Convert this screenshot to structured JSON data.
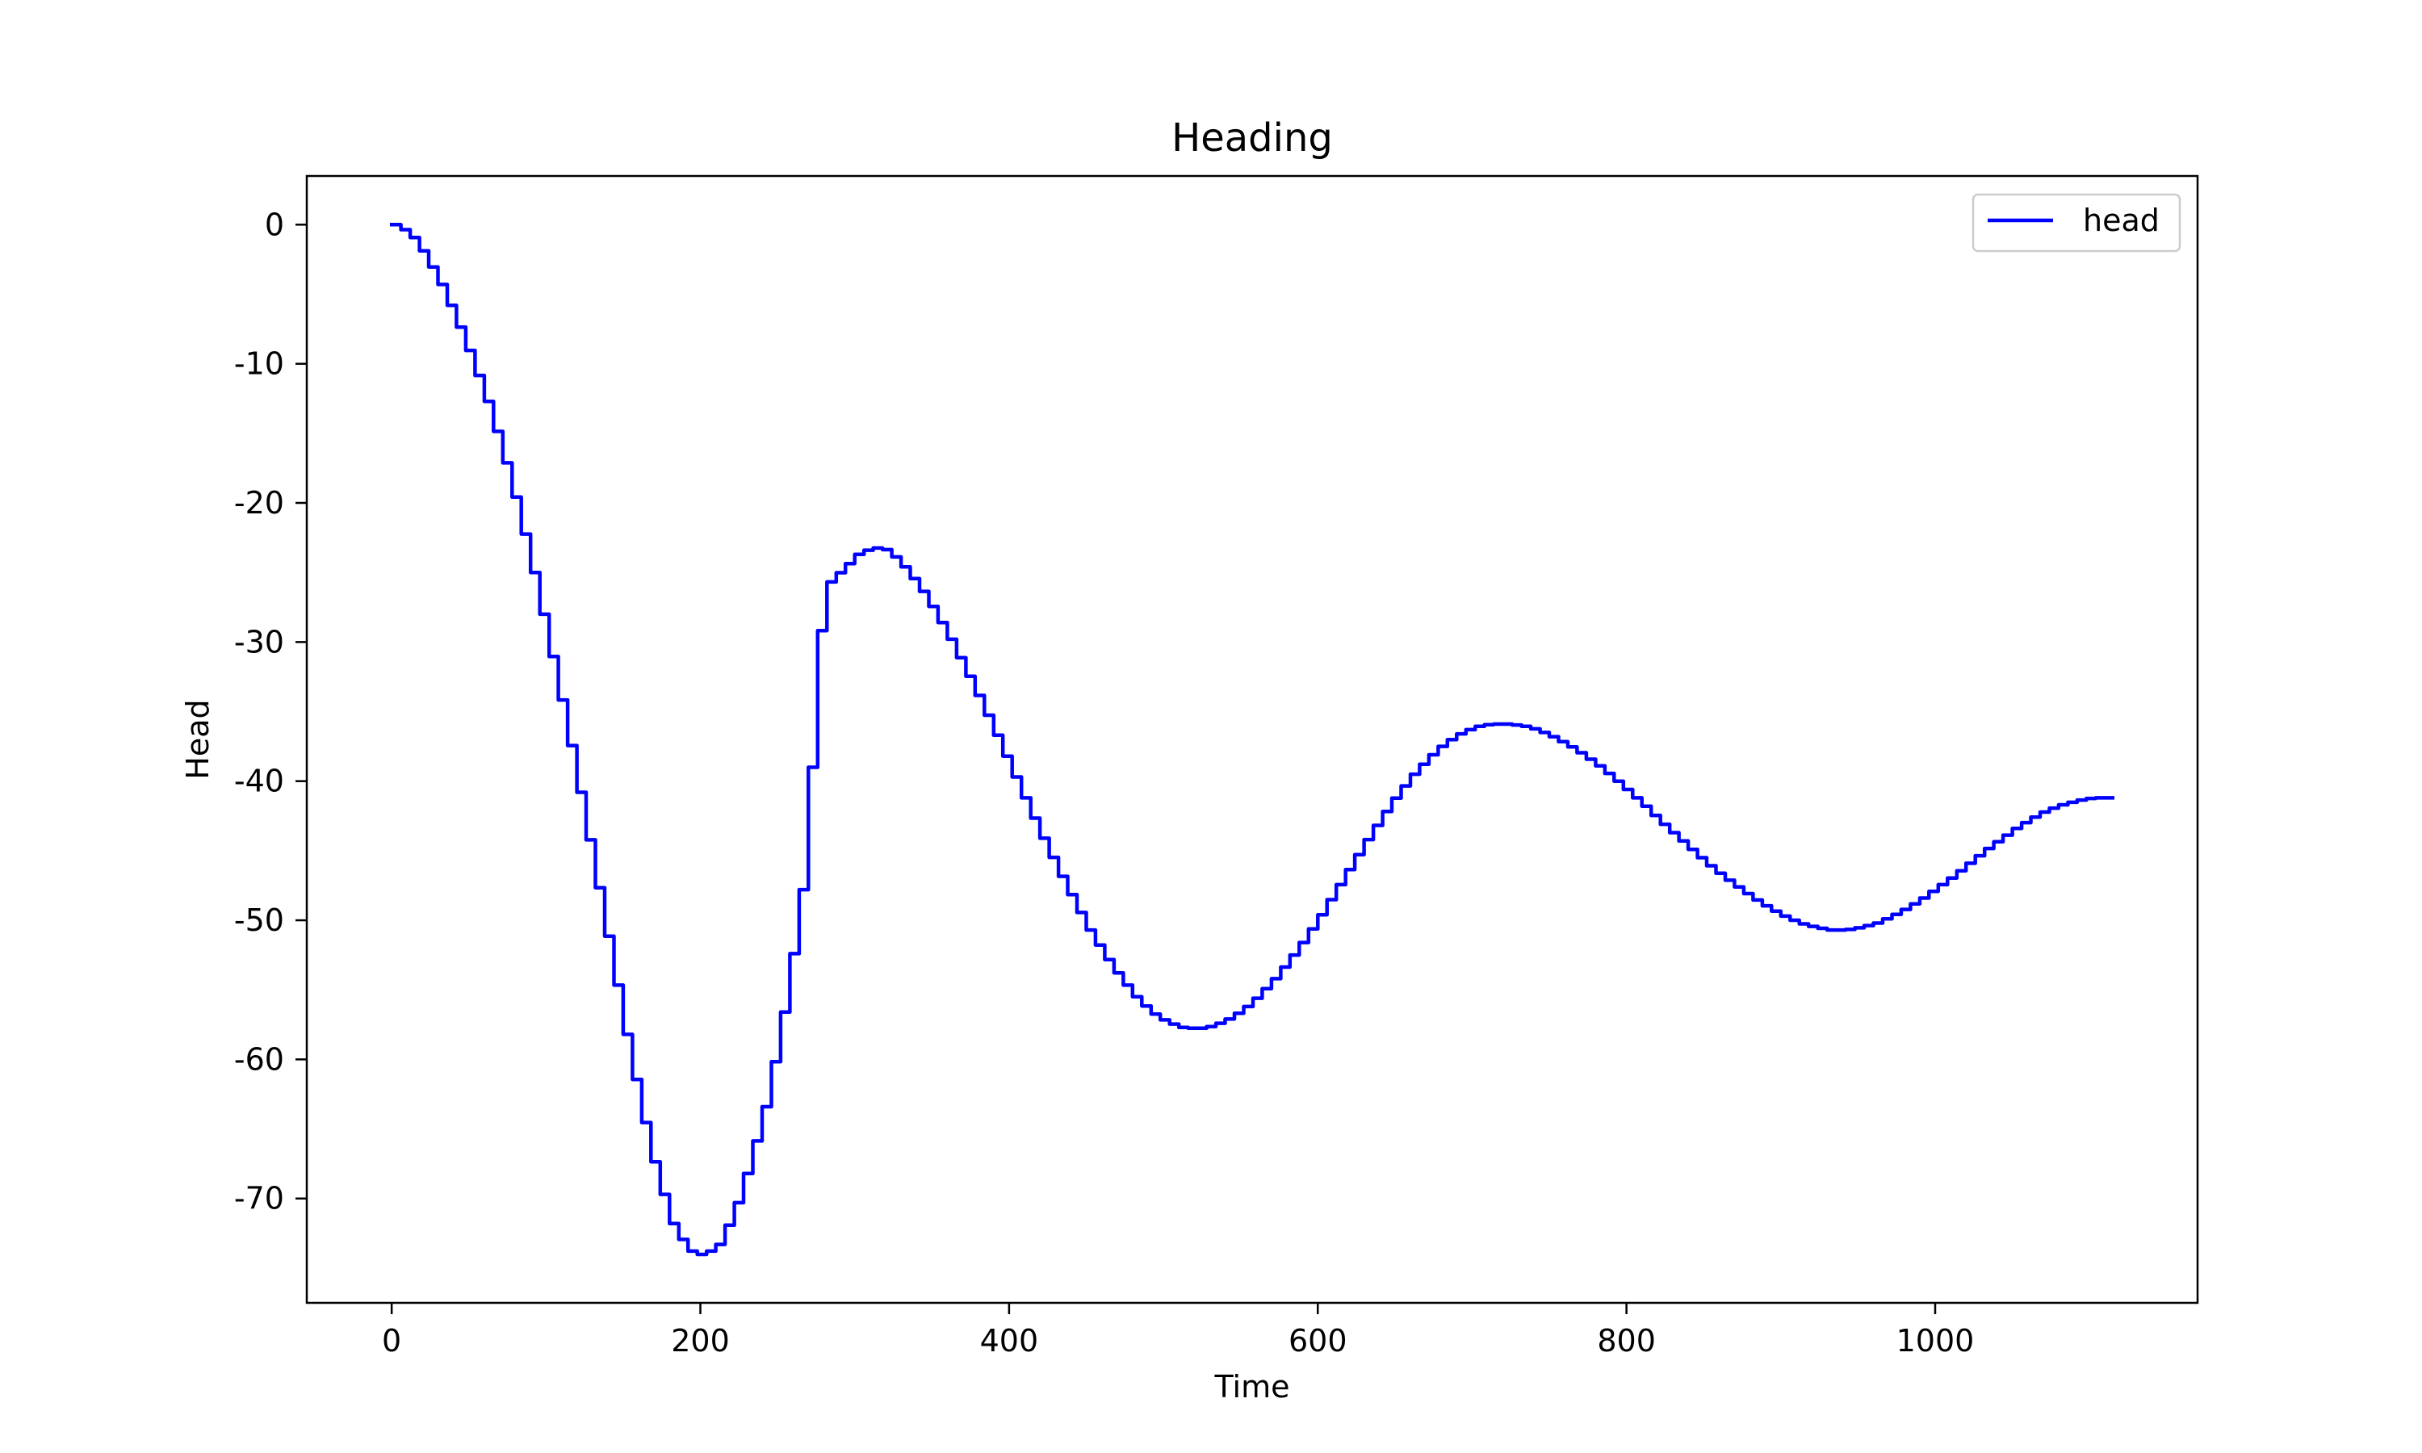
{
  "chart_data": {
    "type": "line",
    "title": "Heading",
    "xlabel": "Time",
    "ylabel": "Head",
    "xlim": [
      -55,
      1170
    ],
    "ylim": [
      -77.5,
      3.5
    ],
    "xticks": [
      0,
      200,
      400,
      600,
      800,
      1000
    ],
    "yticks": [
      0,
      -10,
      -20,
      -30,
      -40,
      -50,
      -60,
      -70
    ],
    "grid": false,
    "legend": {
      "position": "top-right",
      "entries": [
        "head"
      ]
    },
    "series": [
      {
        "name": "head",
        "color": "#0000ff",
        "step_interval": 6,
        "points": [
          [
            0,
            0
          ],
          [
            10,
            -0.6
          ],
          [
            20,
            -2.2
          ],
          [
            30,
            -4.3
          ],
          [
            40,
            -6.8
          ],
          [
            50,
            -9.6
          ],
          [
            60,
            -12.7
          ],
          [
            70,
            -16.3
          ],
          [
            80,
            -20.4
          ],
          [
            90,
            -25.0
          ],
          [
            100,
            -30.0
          ],
          [
            110,
            -35.2
          ],
          [
            120,
            -40.8
          ],
          [
            130,
            -46.5
          ],
          [
            140,
            -52.3
          ],
          [
            150,
            -58.2
          ],
          [
            160,
            -63.6
          ],
          [
            170,
            -68.3
          ],
          [
            180,
            -71.8
          ],
          [
            190,
            -73.7
          ],
          [
            200,
            -74.1
          ],
          [
            210,
            -73.3
          ],
          [
            220,
            -71.0
          ],
          [
            230,
            -67.5
          ],
          [
            240,
            -63.4
          ],
          [
            250,
            -58.0
          ],
          [
            260,
            -51.0
          ],
          [
            265,
            -47.0
          ],
          [
            270,
            -39.0
          ],
          [
            275,
            -30.0
          ],
          [
            280,
            -25.9
          ],
          [
            290,
            -24.8
          ],
          [
            300,
            -23.7
          ],
          [
            310,
            -23.2
          ],
          [
            320,
            -23.4
          ],
          [
            330,
            -24.6
          ],
          [
            340,
            -26.0
          ],
          [
            350,
            -27.8
          ],
          [
            360,
            -29.8
          ],
          [
            370,
            -32.0
          ],
          [
            380,
            -34.3
          ],
          [
            390,
            -36.7
          ],
          [
            400,
            -39.2
          ],
          [
            410,
            -41.7
          ],
          [
            420,
            -44.1
          ],
          [
            430,
            -46.4
          ],
          [
            440,
            -48.6
          ],
          [
            450,
            -50.7
          ],
          [
            460,
            -52.5
          ],
          [
            470,
            -54.1
          ],
          [
            480,
            -55.5
          ],
          [
            490,
            -56.6
          ],
          [
            500,
            -57.3
          ],
          [
            510,
            -57.7
          ],
          [
            520,
            -57.8
          ],
          [
            530,
            -57.6
          ],
          [
            540,
            -57.1
          ],
          [
            550,
            -56.4
          ],
          [
            560,
            -55.4
          ],
          [
            570,
            -54.2
          ],
          [
            580,
            -52.8
          ],
          [
            590,
            -51.3
          ],
          [
            600,
            -49.6
          ],
          [
            610,
            -47.8
          ],
          [
            620,
            -46.0
          ],
          [
            630,
            -44.2
          ],
          [
            640,
            -42.5
          ],
          [
            650,
            -40.9
          ],
          [
            660,
            -39.5
          ],
          [
            670,
            -38.3
          ],
          [
            680,
            -37.3
          ],
          [
            690,
            -36.6
          ],
          [
            700,
            -36.1
          ],
          [
            710,
            -35.9
          ],
          [
            720,
            -35.9
          ],
          [
            730,
            -36.0
          ],
          [
            740,
            -36.3
          ],
          [
            750,
            -36.8
          ],
          [
            760,
            -37.4
          ],
          [
            770,
            -38.1
          ],
          [
            780,
            -38.9
          ],
          [
            790,
            -39.8
          ],
          [
            800,
            -40.8
          ],
          [
            810,
            -41.8
          ],
          [
            820,
            -42.9
          ],
          [
            830,
            -43.9
          ],
          [
            840,
            -44.9
          ],
          [
            850,
            -45.9
          ],
          [
            860,
            -46.8
          ],
          [
            870,
            -47.6
          ],
          [
            880,
            -48.4
          ],
          [
            890,
            -49.1
          ],
          [
            900,
            -49.7
          ],
          [
            910,
            -50.2
          ],
          [
            920,
            -50.5
          ],
          [
            930,
            -50.7
          ],
          [
            940,
            -50.7
          ],
          [
            950,
            -50.5
          ],
          [
            960,
            -50.2
          ],
          [
            970,
            -49.7
          ],
          [
            980,
            -49.1
          ],
          [
            990,
            -48.4
          ],
          [
            1000,
            -47.6
          ],
          [
            1010,
            -46.8
          ],
          [
            1020,
            -45.9
          ],
          [
            1030,
            -45.0
          ],
          [
            1040,
            -44.2
          ],
          [
            1050,
            -43.4
          ],
          [
            1060,
            -42.7
          ],
          [
            1070,
            -42.1
          ],
          [
            1080,
            -41.7
          ],
          [
            1090,
            -41.4
          ],
          [
            1100,
            -41.2
          ],
          [
            1115,
            -41.2
          ]
        ]
      }
    ]
  }
}
